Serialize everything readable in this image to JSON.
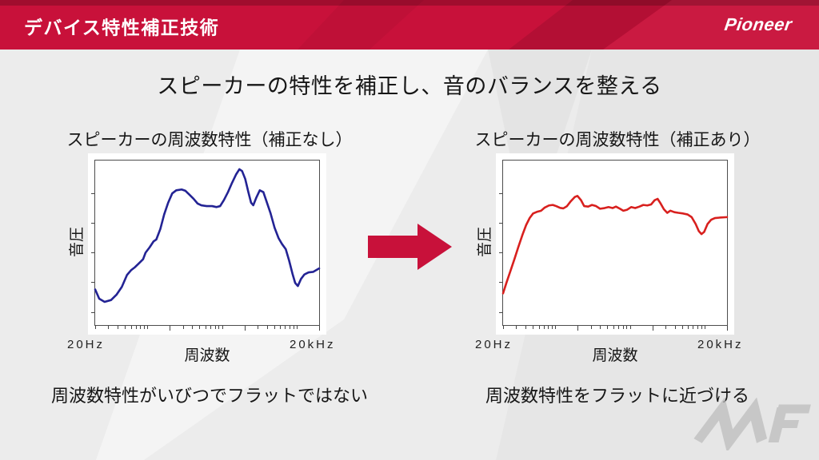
{
  "banner": {
    "title": "デバイス特性補正技術",
    "brand": "Pioneer",
    "bg_color": "#C8113A"
  },
  "heading": "スピーカーの特性を補正し、音のバランスを整える",
  "arrow_color": "#C8113A",
  "watermark": {
    "text": "MF",
    "color": "#BDBDBD"
  },
  "chart_data": [
    {
      "type": "line",
      "title": "スピーカーの周波数特性（補正なし）",
      "caption": "周波数特性がいびつでフラットではない",
      "xlabel": "周波数",
      "ylabel": "音圧",
      "x_min_label": "20Hz",
      "x_max_label": "20kHz",
      "x_scale": "log",
      "x_range_hz": [
        20,
        20000
      ],
      "grid": false,
      "line_color": "#232394",
      "x_tick_freqs": [
        20,
        30,
        40,
        50,
        60,
        70,
        80,
        90,
        100,
        200,
        300,
        400,
        500,
        600,
        700,
        800,
        900,
        1000,
        2000,
        3000,
        4000,
        5000,
        6000,
        7000,
        8000,
        9000,
        10000,
        20000
      ],
      "y_tick_positions": [
        20,
        38,
        56,
        74,
        92
      ],
      "points": [
        [
          0,
          78.4
        ],
        [
          1.8,
          84
        ],
        [
          4.2,
          85.9
        ],
        [
          7.1,
          84.8
        ],
        [
          9.5,
          81.6
        ],
        [
          11.9,
          76.8
        ],
        [
          14.2,
          69.6
        ],
        [
          16,
          66.7
        ],
        [
          17.8,
          64.8
        ],
        [
          19.6,
          62.4
        ],
        [
          21.4,
          60
        ],
        [
          22.5,
          56
        ],
        [
          24.3,
          52.8
        ],
        [
          26.1,
          49.1
        ],
        [
          27.3,
          48
        ],
        [
          29.1,
          41.6
        ],
        [
          30.8,
          32.8
        ],
        [
          32.6,
          25.6
        ],
        [
          34.4,
          20
        ],
        [
          36.2,
          18.1
        ],
        [
          38.6,
          17.6
        ],
        [
          40.3,
          18.4
        ],
        [
          42.1,
          20.8
        ],
        [
          43.9,
          23.2
        ],
        [
          45.7,
          26.1
        ],
        [
          47.4,
          27.2
        ],
        [
          49.8,
          27.7
        ],
        [
          52.2,
          27.7
        ],
        [
          54.2,
          28.3
        ],
        [
          55.8,
          27.7
        ],
        [
          57.5,
          24
        ],
        [
          59.3,
          19.2
        ],
        [
          61.1,
          13.6
        ],
        [
          62.9,
          8.5
        ],
        [
          64.4,
          5.3
        ],
        [
          65.6,
          6.4
        ],
        [
          67,
          11.2
        ],
        [
          68.4,
          19.2
        ],
        [
          69.6,
          25.6
        ],
        [
          70.6,
          27.2
        ],
        [
          72,
          22.4
        ],
        [
          73.5,
          18.1
        ],
        [
          75.1,
          19.2
        ],
        [
          76.5,
          24.8
        ],
        [
          78.3,
          32
        ],
        [
          80.1,
          40.8
        ],
        [
          81.9,
          47.2
        ],
        [
          83.4,
          50.7
        ],
        [
          85.1,
          53.9
        ],
        [
          86.6,
          60.8
        ],
        [
          88.1,
          68.8
        ],
        [
          89.3,
          74.4
        ],
        [
          90.5,
          76.3
        ],
        [
          91.9,
          72
        ],
        [
          93.4,
          69.3
        ],
        [
          95.3,
          68
        ],
        [
          97.3,
          67.7
        ],
        [
          100,
          65.6
        ]
      ]
    },
    {
      "type": "line",
      "title": "スピーカーの周波数特性（補正あり）",
      "caption": "周波数特性をフラットに近づける",
      "xlabel": "周波数",
      "ylabel": "音圧",
      "x_min_label": "20Hz",
      "x_max_label": "20kHz",
      "x_scale": "log",
      "x_range_hz": [
        20,
        20000
      ],
      "grid": false,
      "line_color": "#D8201E",
      "x_tick_freqs": [
        20,
        30,
        40,
        50,
        60,
        70,
        80,
        90,
        100,
        200,
        300,
        400,
        500,
        600,
        700,
        800,
        900,
        1000,
        2000,
        3000,
        4000,
        5000,
        6000,
        7000,
        8000,
        9000,
        10000,
        20000
      ],
      "y_tick_positions": [
        20,
        38,
        56,
        74,
        92
      ],
      "points": [
        [
          0,
          80.7
        ],
        [
          1.5,
          74.3
        ],
        [
          3.2,
          67.5
        ],
        [
          5.1,
          59.8
        ],
        [
          6.8,
          52.6
        ],
        [
          8.7,
          45
        ],
        [
          10.3,
          39.2
        ],
        [
          11.9,
          34.9
        ],
        [
          13.4,
          32.2
        ],
        [
          15.1,
          31.2
        ],
        [
          17,
          30.5
        ],
        [
          18.6,
          28.6
        ],
        [
          20.5,
          27.3
        ],
        [
          22.2,
          27
        ],
        [
          23.7,
          27.7
        ],
        [
          25.5,
          28.8
        ],
        [
          26.9,
          29.1
        ],
        [
          28.5,
          27.8
        ],
        [
          30.2,
          24.8
        ],
        [
          32,
          22.2
        ],
        [
          33.2,
          21.5
        ],
        [
          34.8,
          24.1
        ],
        [
          36.2,
          27.7
        ],
        [
          38,
          28
        ],
        [
          39.7,
          27
        ],
        [
          41.5,
          27.7
        ],
        [
          43.3,
          29.3
        ],
        [
          45.3,
          28.9
        ],
        [
          47.1,
          28.3
        ],
        [
          48.9,
          28.9
        ],
        [
          50.4,
          28
        ],
        [
          52.2,
          29.3
        ],
        [
          53.7,
          30.5
        ],
        [
          55.4,
          29.9
        ],
        [
          57.2,
          28.3
        ],
        [
          59,
          28.9
        ],
        [
          60.9,
          28
        ],
        [
          62.6,
          27
        ],
        [
          64.4,
          27.3
        ],
        [
          66.1,
          26.7
        ],
        [
          67.7,
          24.1
        ],
        [
          69,
          23.3
        ],
        [
          70.3,
          26
        ],
        [
          71.8,
          29.6
        ],
        [
          73.3,
          31.8
        ],
        [
          74.7,
          30.5
        ],
        [
          76.5,
          31.4
        ],
        [
          78.3,
          31.8
        ],
        [
          80.4,
          32.2
        ],
        [
          82.4,
          32.8
        ],
        [
          84.2,
          34.4
        ],
        [
          86,
          38.6
        ],
        [
          87.4,
          42.9
        ],
        [
          88.6,
          44.7
        ],
        [
          89.8,
          43.4
        ],
        [
          91.3,
          38.6
        ],
        [
          92.9,
          36
        ],
        [
          94.6,
          35
        ],
        [
          96.7,
          34.7
        ],
        [
          100,
          34.4
        ]
      ]
    }
  ]
}
